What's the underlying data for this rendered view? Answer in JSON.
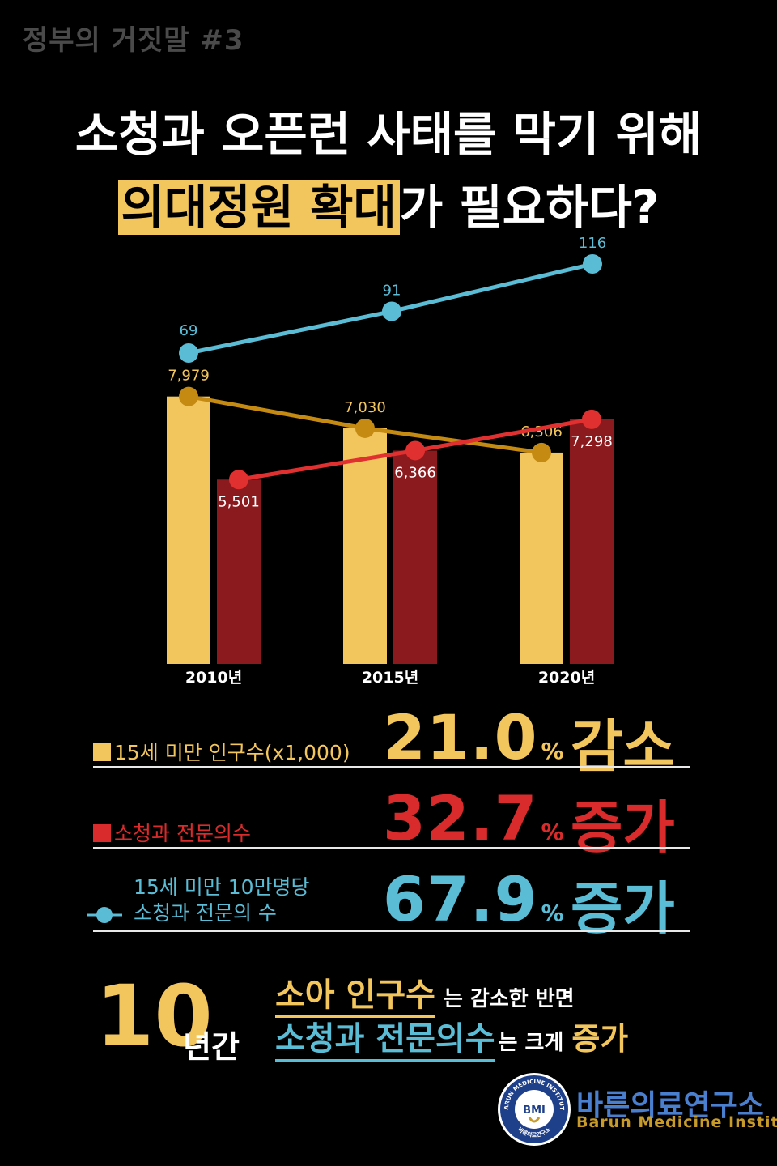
{
  "header": {
    "series_tag": "정부의 거짓말 #3",
    "title_line1": "소청과 오픈런 사태를 막기 위해",
    "title_line2_highlight": "의대정원 확대",
    "title_line2_rest": "가 필요하다?"
  },
  "colors": {
    "background": "#000000",
    "population": "#f3c55d",
    "population_line": "#c48a12",
    "specialists": "#8b1a1e",
    "specialists_line": "#e03030",
    "per_capita": "#5bbcd6"
  },
  "chart_data": {
    "type": "bar",
    "categories": [
      "2010년",
      "2015년",
      "2020년"
    ],
    "series": [
      {
        "name": "15세 미만 인구수(x1,000)",
        "kind": "bar+line",
        "values": [
          7979,
          7030,
          6306
        ],
        "labels": [
          "7,979",
          "7,030",
          "6,306"
        ]
      },
      {
        "name": "소청과 전문의수",
        "kind": "bar+line",
        "values": [
          5501,
          6366,
          7298
        ],
        "labels": [
          "5,501",
          "6,366",
          "7,298"
        ]
      },
      {
        "name": "15세 미만 10만명당 소청과 전문의 수",
        "kind": "line",
        "values": [
          69,
          91,
          116
        ],
        "labels": [
          "69",
          "91",
          "116"
        ]
      }
    ]
  },
  "stats": [
    {
      "legend": "15세 미만 인구수(x1,000)",
      "number": "21.0",
      "unit": "%",
      "word": "감소",
      "color": "#f3c55d"
    },
    {
      "legend": "소청과 전문의수",
      "number": "32.7",
      "unit": "%",
      "word": "증가",
      "color": "#d92b2b"
    },
    {
      "legend_line1": "15세 미만 10만명당",
      "legend_line2": "소청과 전문의 수",
      "number": "67.9",
      "unit": "%",
      "word": "증가",
      "color": "#5bbcd6"
    }
  ],
  "summary": {
    "years_number": "10",
    "years_unit": "년간",
    "line1_key": "소아 인구수",
    "line1_rest": "는 감소한 반면",
    "line2_key": "소청과 전문의수",
    "line2_mid": "는 크게",
    "line2_end": "증가"
  },
  "logo": {
    "ring_text": "BARUN MEDICINE INSTITUTE",
    "center_text": "BMI",
    "bottom_text": "바른의료연구소",
    "name_ko": "바른의료연구소",
    "name_en": "Barun Medicine Institute"
  }
}
